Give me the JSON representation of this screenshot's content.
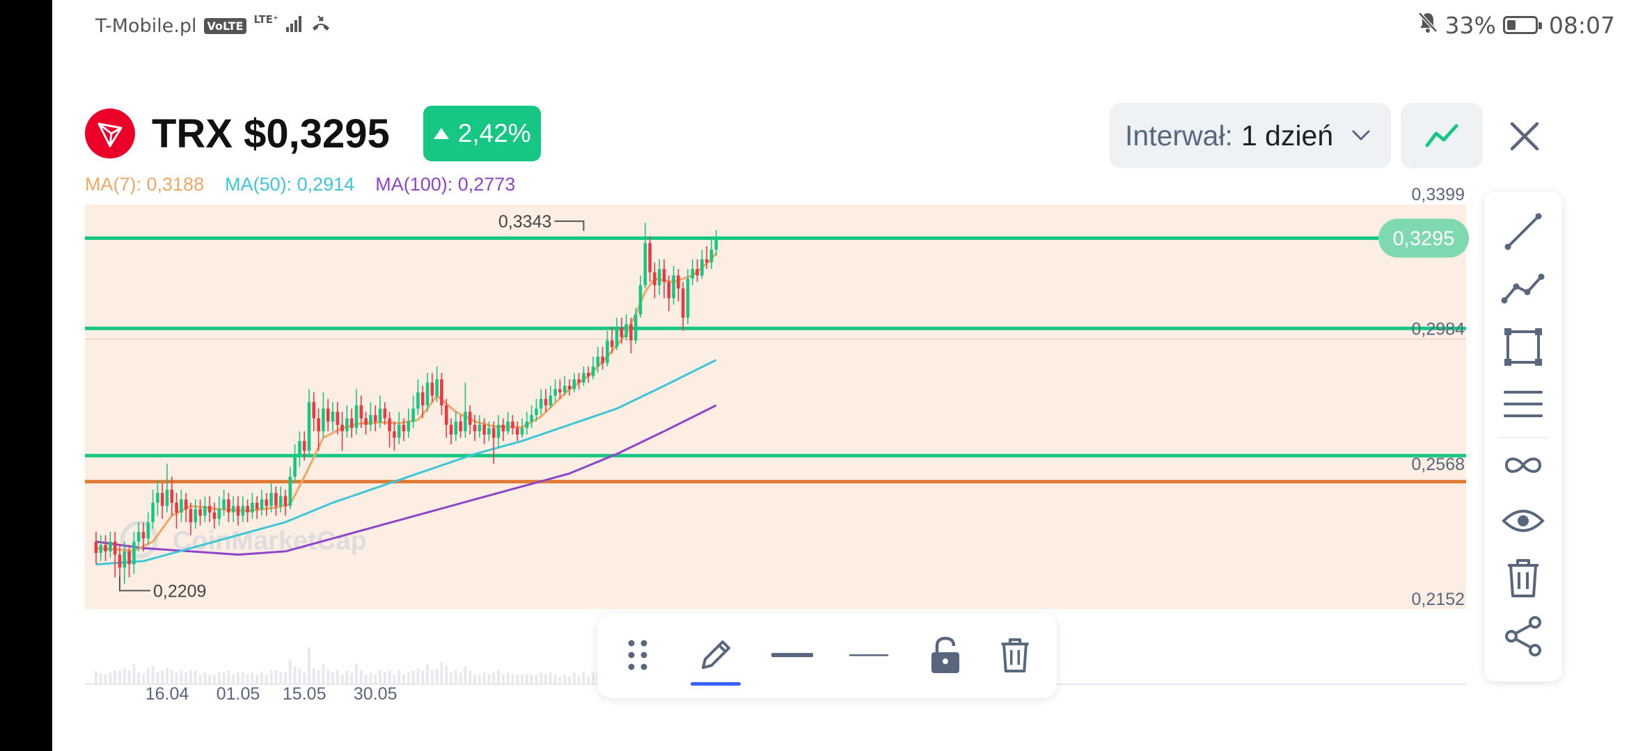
{
  "status_bar": {
    "carrier": "T-Mobile.pl",
    "volte": "VoLTE",
    "network": "LTE⁺",
    "battery": "33%",
    "battery_level": 0.33,
    "time": "08:07"
  },
  "header": {
    "coin_symbol": "TRX",
    "price": "$0,3295",
    "change": "2,42%",
    "interval_label": "Interwał:",
    "interval_value": "1 dzień"
  },
  "ma_legend": [
    {
      "label": "MA(7): 0,3188",
      "color": "#f0a766"
    },
    {
      "label": "MA(50): 0,2914",
      "color": "#3cc6d6"
    },
    {
      "label": "MA(100): 0,2773",
      "color": "#8e44c9"
    }
  ],
  "colors": {
    "up": "#16c784",
    "down": "#ea3943",
    "ma7": "#f0a766",
    "ma50": "#3cc6d6",
    "ma100": "#8e44c9",
    "support": "#e07a35",
    "accent": "#3861fb",
    "chart_bg": "#fdeee4"
  },
  "chart_data": {
    "type": "candlestick",
    "ylim": [
      0.2152,
      0.3399
    ],
    "y_ticks": [
      "0,3399",
      "0,2984",
      "0,2568",
      "0,2152"
    ],
    "x_ticks": [
      "16.04",
      "01.05",
      "15.05",
      "30.05"
    ],
    "x_tick_days": [
      15,
      30,
      44,
      59
    ],
    "current_price": 0.3295,
    "current_price_label": "0,3295",
    "high": {
      "value": 0.3343,
      "label": "0,3343",
      "day": 103
    },
    "low": {
      "value": 0.2209,
      "label": "0,2209",
      "day": 5
    },
    "horizontal_lines": [
      {
        "value": 0.3295,
        "color": "#16c784"
      },
      {
        "value": 0.3017,
        "color": "#16c784"
      },
      {
        "value": 0.2625,
        "color": "#16c784"
      },
      {
        "value": 0.2545,
        "color": "#e07a35"
      }
    ],
    "watermark": "CoinMarketCap",
    "candles": [
      [
        0.236,
        0.2325,
        0.239,
        0.229
      ],
      [
        0.2325,
        0.235,
        0.238,
        0.23
      ],
      [
        0.235,
        0.233,
        0.238,
        0.23
      ],
      [
        0.233,
        0.236,
        0.239,
        0.231
      ],
      [
        0.236,
        0.232,
        0.239,
        0.225
      ],
      [
        0.232,
        0.228,
        0.235,
        0.2209
      ],
      [
        0.228,
        0.233,
        0.236,
        0.223
      ],
      [
        0.233,
        0.229,
        0.235,
        0.225
      ],
      [
        0.229,
        0.236,
        0.239,
        0.226
      ],
      [
        0.236,
        0.239,
        0.242,
        0.233
      ],
      [
        0.239,
        0.237,
        0.242,
        0.233
      ],
      [
        0.237,
        0.242,
        0.245,
        0.235
      ],
      [
        0.242,
        0.248,
        0.252,
        0.24
      ],
      [
        0.248,
        0.251,
        0.255,
        0.244
      ],
      [
        0.251,
        0.247,
        0.254,
        0.243
      ],
      [
        0.247,
        0.252,
        0.26,
        0.245
      ],
      [
        0.252,
        0.248,
        0.256,
        0.244
      ],
      [
        0.248,
        0.245,
        0.251,
        0.24
      ],
      [
        0.245,
        0.249,
        0.252,
        0.242
      ],
      [
        0.249,
        0.246,
        0.251,
        0.242
      ],
      [
        0.246,
        0.242,
        0.248,
        0.238
      ],
      [
        0.242,
        0.246,
        0.249,
        0.24
      ],
      [
        0.246,
        0.244,
        0.249,
        0.241
      ],
      [
        0.244,
        0.247,
        0.25,
        0.242
      ],
      [
        0.247,
        0.245,
        0.25,
        0.242
      ],
      [
        0.245,
        0.243,
        0.248,
        0.24
      ],
      [
        0.243,
        0.246,
        0.25,
        0.241
      ],
      [
        0.246,
        0.249,
        0.252,
        0.244
      ],
      [
        0.249,
        0.245,
        0.251,
        0.242
      ],
      [
        0.245,
        0.247,
        0.25,
        0.242
      ],
      [
        0.247,
        0.244,
        0.25,
        0.241
      ],
      [
        0.244,
        0.247,
        0.25,
        0.242
      ],
      [
        0.247,
        0.245,
        0.249,
        0.242
      ],
      [
        0.245,
        0.248,
        0.251,
        0.243
      ],
      [
        0.248,
        0.246,
        0.25,
        0.243
      ],
      [
        0.246,
        0.249,
        0.252,
        0.244
      ],
      [
        0.249,
        0.247,
        0.251,
        0.244
      ],
      [
        0.247,
        0.251,
        0.254,
        0.245
      ],
      [
        0.251,
        0.247,
        0.253,
        0.244
      ],
      [
        0.247,
        0.25,
        0.253,
        0.245
      ],
      [
        0.25,
        0.247,
        0.252,
        0.244
      ],
      [
        0.247,
        0.256,
        0.259,
        0.246
      ],
      [
        0.256,
        0.262,
        0.266,
        0.254
      ],
      [
        0.262,
        0.267,
        0.27,
        0.259
      ],
      [
        0.267,
        0.264,
        0.27,
        0.261
      ],
      [
        0.264,
        0.279,
        0.283,
        0.263
      ],
      [
        0.279,
        0.274,
        0.282,
        0.27
      ],
      [
        0.274,
        0.27,
        0.277,
        0.264
      ],
      [
        0.27,
        0.277,
        0.282,
        0.268
      ],
      [
        0.277,
        0.273,
        0.28,
        0.27
      ],
      [
        0.273,
        0.276,
        0.279,
        0.27
      ],
      [
        0.276,
        0.272,
        0.279,
        0.269
      ],
      [
        0.272,
        0.27,
        0.276,
        0.264
      ],
      [
        0.27,
        0.274,
        0.278,
        0.268
      ],
      [
        0.274,
        0.271,
        0.277,
        0.268
      ],
      [
        0.271,
        0.278,
        0.283,
        0.269
      ],
      [
        0.278,
        0.274,
        0.281,
        0.271
      ],
      [
        0.274,
        0.272,
        0.276,
        0.269
      ],
      [
        0.272,
        0.275,
        0.279,
        0.27
      ],
      [
        0.275,
        0.273,
        0.278,
        0.27
      ],
      [
        0.273,
        0.277,
        0.281,
        0.271
      ],
      [
        0.277,
        0.274,
        0.279,
        0.272
      ],
      [
        0.274,
        0.27,
        0.276,
        0.265
      ],
      [
        0.27,
        0.268,
        0.273,
        0.264
      ],
      [
        0.268,
        0.272,
        0.276,
        0.266
      ],
      [
        0.272,
        0.27,
        0.274,
        0.267
      ],
      [
        0.27,
        0.273,
        0.277,
        0.268
      ],
      [
        0.273,
        0.277,
        0.281,
        0.271
      ],
      [
        0.277,
        0.282,
        0.286,
        0.275
      ],
      [
        0.282,
        0.278,
        0.284,
        0.274
      ],
      [
        0.278,
        0.285,
        0.288,
        0.276
      ],
      [
        0.285,
        0.281,
        0.288,
        0.279
      ],
      [
        0.281,
        0.286,
        0.29,
        0.279
      ],
      [
        0.286,
        0.278,
        0.288,
        0.275
      ],
      [
        0.278,
        0.272,
        0.28,
        0.268
      ],
      [
        0.272,
        0.269,
        0.274,
        0.266
      ],
      [
        0.269,
        0.273,
        0.276,
        0.267
      ],
      [
        0.273,
        0.27,
        0.275,
        0.268
      ],
      [
        0.27,
        0.276,
        0.285,
        0.268
      ],
      [
        0.276,
        0.272,
        0.278,
        0.269
      ],
      [
        0.272,
        0.27,
        0.275,
        0.267
      ],
      [
        0.27,
        0.272,
        0.275,
        0.268
      ],
      [
        0.272,
        0.269,
        0.274,
        0.266
      ],
      [
        0.269,
        0.271,
        0.273,
        0.267
      ],
      [
        0.271,
        0.268,
        0.273,
        0.26
      ],
      [
        0.268,
        0.272,
        0.275,
        0.265
      ],
      [
        0.272,
        0.27,
        0.274,
        0.267
      ],
      [
        0.27,
        0.273,
        0.276,
        0.269
      ],
      [
        0.273,
        0.271,
        0.275,
        0.269
      ],
      [
        0.271,
        0.269,
        0.273,
        0.267
      ],
      [
        0.269,
        0.271,
        0.274,
        0.268
      ],
      [
        0.271,
        0.273,
        0.276,
        0.269
      ],
      [
        0.273,
        0.275,
        0.278,
        0.271
      ],
      [
        0.275,
        0.277,
        0.28,
        0.273
      ],
      [
        0.277,
        0.28,
        0.283,
        0.275
      ],
      [
        0.28,
        0.278,
        0.283,
        0.276
      ],
      [
        0.278,
        0.281,
        0.284,
        0.277
      ],
      [
        0.281,
        0.283,
        0.286,
        0.279
      ],
      [
        0.283,
        0.282,
        0.286,
        0.28
      ],
      [
        0.282,
        0.284,
        0.287,
        0.281
      ],
      [
        0.284,
        0.283,
        0.286,
        0.281
      ],
      [
        0.283,
        0.286,
        0.288,
        0.282
      ],
      [
        0.286,
        0.285,
        0.288,
        0.283
      ],
      [
        0.285,
        0.288,
        0.29,
        0.284
      ],
      [
        0.288,
        0.287,
        0.29,
        0.285
      ],
      [
        0.287,
        0.29,
        0.293,
        0.286
      ],
      [
        0.29,
        0.293,
        0.296,
        0.288
      ],
      [
        0.293,
        0.291,
        0.296,
        0.289
      ],
      [
        0.291,
        0.298,
        0.301,
        0.29
      ],
      [
        0.298,
        0.296,
        0.302,
        0.294
      ],
      [
        0.296,
        0.302,
        0.305,
        0.295
      ],
      [
        0.302,
        0.299,
        0.305,
        0.297
      ],
      [
        0.299,
        0.303,
        0.306,
        0.298
      ],
      [
        0.303,
        0.298,
        0.305,
        0.294
      ],
      [
        0.298,
        0.306,
        0.308,
        0.297
      ],
      [
        0.306,
        0.315,
        0.318,
        0.305
      ],
      [
        0.315,
        0.328,
        0.3343,
        0.314
      ],
      [
        0.328,
        0.319,
        0.33,
        0.316
      ],
      [
        0.319,
        0.315,
        0.322,
        0.311
      ],
      [
        0.315,
        0.32,
        0.323,
        0.312
      ],
      [
        0.32,
        0.316,
        0.323,
        0.311
      ],
      [
        0.316,
        0.311,
        0.318,
        0.307
      ],
      [
        0.311,
        0.318,
        0.321,
        0.309
      ],
      [
        0.318,
        0.314,
        0.32,
        0.31
      ],
      [
        0.314,
        0.305,
        0.316,
        0.301
      ],
      [
        0.305,
        0.317,
        0.32,
        0.303
      ],
      [
        0.317,
        0.32,
        0.323,
        0.315
      ],
      [
        0.32,
        0.318,
        0.323,
        0.316
      ],
      [
        0.318,
        0.323,
        0.326,
        0.317
      ],
      [
        0.323,
        0.322,
        0.327,
        0.32
      ],
      [
        0.322,
        0.326,
        0.329,
        0.32
      ],
      [
        0.326,
        0.3295,
        0.332,
        0.324
      ]
    ],
    "ma7_line": [
      [
        0,
        0.234
      ],
      [
        8,
        0.2332
      ],
      [
        12,
        0.236
      ],
      [
        16,
        0.244
      ],
      [
        20,
        0.247
      ],
      [
        26,
        0.246
      ],
      [
        32,
        0.2455
      ],
      [
        38,
        0.2465
      ],
      [
        41,
        0.2475
      ],
      [
        44,
        0.256
      ],
      [
        46,
        0.262
      ],
      [
        48,
        0.268
      ],
      [
        52,
        0.271
      ],
      [
        56,
        0.2725
      ],
      [
        60,
        0.2728
      ],
      [
        64,
        0.2725
      ],
      [
        68,
        0.2735
      ],
      [
        70,
        0.277
      ],
      [
        72,
        0.281
      ],
      [
        76,
        0.276
      ],
      [
        80,
        0.273
      ],
      [
        84,
        0.2715
      ],
      [
        90,
        0.2712
      ],
      [
        94,
        0.2745
      ],
      [
        100,
        0.283
      ],
      [
        104,
        0.287
      ],
      [
        108,
        0.293
      ],
      [
        112,
        0.3
      ],
      [
        114,
        0.306
      ],
      [
        116,
        0.313
      ],
      [
        118,
        0.317
      ],
      [
        122,
        0.316
      ],
      [
        126,
        0.318
      ],
      [
        130,
        0.323
      ],
      [
        131,
        0.325
      ]
    ],
    "ma50_line": [
      [
        0,
        0.229
      ],
      [
        10,
        0.23
      ],
      [
        20,
        0.234
      ],
      [
        30,
        0.238
      ],
      [
        40,
        0.242
      ],
      [
        50,
        0.248
      ],
      [
        60,
        0.253
      ],
      [
        70,
        0.258
      ],
      [
        80,
        0.263
      ],
      [
        90,
        0.267
      ],
      [
        100,
        0.272
      ],
      [
        110,
        0.277
      ],
      [
        120,
        0.284
      ],
      [
        131,
        0.292
      ]
    ],
    "ma100_line": [
      [
        0,
        0.236
      ],
      [
        10,
        0.234
      ],
      [
        20,
        0.233
      ],
      [
        30,
        0.232
      ],
      [
        40,
        0.233
      ],
      [
        50,
        0.237
      ],
      [
        60,
        0.241
      ],
      [
        70,
        0.245
      ],
      [
        80,
        0.249
      ],
      [
        90,
        0.253
      ],
      [
        100,
        0.257
      ],
      [
        110,
        0.263
      ],
      [
        120,
        0.27
      ],
      [
        131,
        0.278
      ]
    ]
  }
}
